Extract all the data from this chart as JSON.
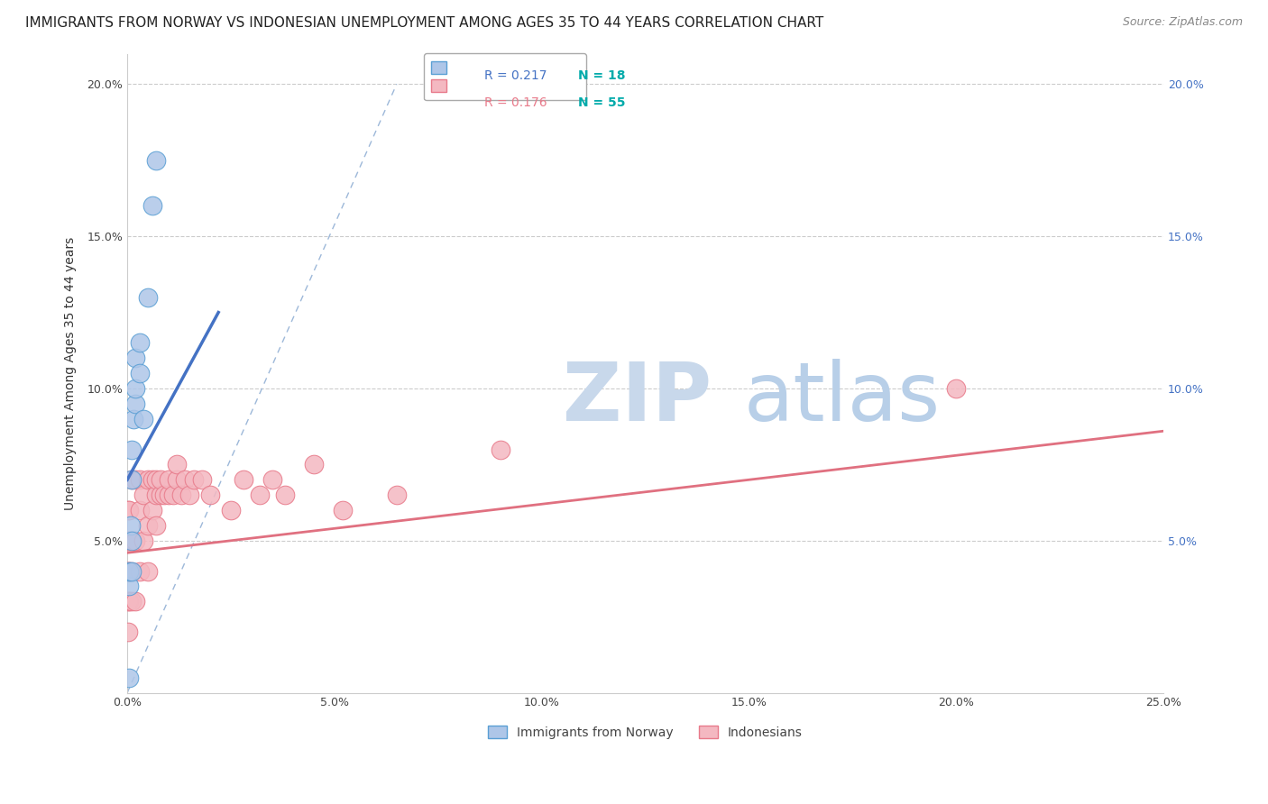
{
  "title": "IMMIGRANTS FROM NORWAY VS INDONESIAN UNEMPLOYMENT AMONG AGES 35 TO 44 YEARS CORRELATION CHART",
  "source": "Source: ZipAtlas.com",
  "ylabel": "Unemployment Among Ages 35 to 44 years",
  "xlim": [
    0.0,
    0.25
  ],
  "ylim": [
    0.0,
    0.21
  ],
  "xticks": [
    0.0,
    0.05,
    0.1,
    0.15,
    0.2,
    0.25
  ],
  "xtick_labels": [
    "0.0%",
    "5.0%",
    "10.0%",
    "15.0%",
    "20.0%",
    "25.0%"
  ],
  "yticks": [
    0.05,
    0.1,
    0.15,
    0.2
  ],
  "ytick_labels": [
    "5.0%",
    "10.0%",
    "15.0%",
    "20.0%"
  ],
  "legend_r1": "R = 0.217",
  "legend_n1": "N = 18",
  "legend_r2": "R = 0.176",
  "legend_n2": "N = 55",
  "norway_color": "#aec6e8",
  "norway_edge": "#5a9fd4",
  "indonesian_color": "#f4b8c1",
  "indonesian_edge": "#e87a8a",
  "norway_line_color": "#4472c4",
  "indonesian_line_color": "#e07080",
  "diag_line_color": "#9db8d9",
  "watermark_color": "#dce8f5",
  "norway_x": [
    0.0005,
    0.0005,
    0.0008,
    0.001,
    0.001,
    0.001,
    0.001,
    0.0015,
    0.002,
    0.002,
    0.002,
    0.003,
    0.003,
    0.004,
    0.005,
    0.006,
    0.007,
    0.0005
  ],
  "norway_y": [
    0.035,
    0.04,
    0.055,
    0.04,
    0.05,
    0.07,
    0.08,
    0.09,
    0.095,
    0.1,
    0.11,
    0.105,
    0.115,
    0.09,
    0.13,
    0.16,
    0.175,
    0.005
  ],
  "indonesian_x": [
    0.0002,
    0.0002,
    0.0002,
    0.0003,
    0.0003,
    0.0003,
    0.0005,
    0.0005,
    0.0005,
    0.0005,
    0.001,
    0.001,
    0.001,
    0.001,
    0.0015,
    0.002,
    0.002,
    0.002,
    0.003,
    0.003,
    0.003,
    0.004,
    0.004,
    0.005,
    0.005,
    0.005,
    0.006,
    0.006,
    0.007,
    0.007,
    0.007,
    0.008,
    0.008,
    0.009,
    0.01,
    0.01,
    0.011,
    0.012,
    0.012,
    0.013,
    0.014,
    0.015,
    0.016,
    0.018,
    0.02,
    0.025,
    0.028,
    0.032,
    0.035,
    0.038,
    0.045,
    0.052,
    0.065,
    0.09,
    0.2
  ],
  "indonesian_y": [
    0.03,
    0.04,
    0.05,
    0.02,
    0.04,
    0.06,
    0.03,
    0.04,
    0.05,
    0.06,
    0.03,
    0.04,
    0.05,
    0.07,
    0.05,
    0.03,
    0.05,
    0.07,
    0.04,
    0.06,
    0.07,
    0.05,
    0.065,
    0.04,
    0.055,
    0.07,
    0.06,
    0.07,
    0.055,
    0.065,
    0.07,
    0.065,
    0.07,
    0.065,
    0.065,
    0.07,
    0.065,
    0.07,
    0.075,
    0.065,
    0.07,
    0.065,
    0.07,
    0.07,
    0.065,
    0.06,
    0.07,
    0.065,
    0.07,
    0.065,
    0.075,
    0.06,
    0.065,
    0.08,
    0.1
  ],
  "norway_line_x": [
    0.0,
    0.022
  ],
  "norway_line_y": [
    0.07,
    0.125
  ],
  "indonesian_line_x": [
    0.0,
    0.25
  ],
  "indonesian_line_y": [
    0.046,
    0.086
  ],
  "diag_line_x": [
    0.0,
    0.065
  ],
  "diag_line_y": [
    0.0,
    0.2
  ],
  "background_color": "#ffffff",
  "title_fontsize": 11,
  "source_fontsize": 9,
  "axis_fontsize": 9,
  "label_fontsize": 10,
  "watermark_fontsize": 65
}
